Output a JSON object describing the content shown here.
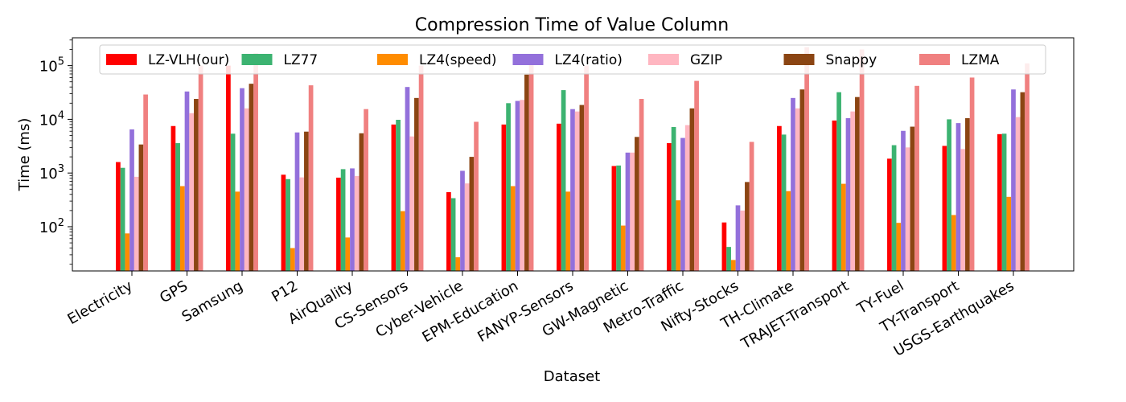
{
  "chart_data": {
    "type": "bar",
    "title": "Compression Time of Value Column",
    "xlabel": "Dataset",
    "ylabel": "Time (ms)",
    "yscale": "log",
    "ylim": [
      15,
      330000
    ],
    "yticks": [
      {
        "value": 100,
        "base": "10",
        "exp": "2"
      },
      {
        "value": 1000,
        "base": "10",
        "exp": "3"
      },
      {
        "value": 10000,
        "base": "10",
        "exp": "4"
      },
      {
        "value": 100000,
        "base": "10",
        "exp": "5"
      }
    ],
    "grid": false,
    "legend_position": "top",
    "categories": [
      "Electricity",
      "GPS",
      "Samsung",
      "P12",
      "AirQuality",
      "CS-Sensors",
      "Cyber-Vehicle",
      "EPM-Education",
      "FANYP-Sensors",
      "GW-Magnetic",
      "Metro-Traffic",
      "Nifty-Stocks",
      "TH-Climate",
      "TRAJET-Transport",
      "TY-Fuel",
      "TY-Transport",
      "USGS-Earthquakes"
    ],
    "series": [
      {
        "name": "LZ-VLH(our)",
        "color": "#ff0000",
        "values": [
          1600,
          7500,
          100000,
          930,
          820,
          8000,
          440,
          8000,
          8300,
          1350,
          3600,
          120,
          7500,
          9500,
          1850,
          3200,
          5300
        ]
      },
      {
        "name": "LZ77",
        "color": "#3cb371",
        "values": [
          1250,
          3600,
          5400,
          770,
          1180,
          9800,
          340,
          20000,
          35000,
          1380,
          7200,
          42,
          5200,
          32000,
          3300,
          10000,
          5400
        ]
      },
      {
        "name": "LZ4(speed)",
        "color": "#ff8c00",
        "values": [
          75,
          570,
          450,
          40,
          63,
          195,
          27,
          570,
          450,
          105,
          310,
          24,
          460,
          630,
          118,
          165,
          360
        ]
      },
      {
        "name": "LZ4(ratio)",
        "color": "#9370db",
        "values": [
          6500,
          33000,
          38000,
          5700,
          1220,
          40000,
          1100,
          22000,
          15500,
          2400,
          4500,
          250,
          25000,
          10500,
          6100,
          8500,
          36000
        ]
      },
      {
        "name": "GZIP",
        "color": "#ffb6c1",
        "values": [
          850,
          13000,
          16000,
          830,
          880,
          4800,
          640,
          23000,
          14000,
          2400,
          7800,
          200,
          16000,
          14000,
          3000,
          2800,
          11000
        ]
      },
      {
        "name": "Snappy",
        "color": "#8b4513",
        "values": [
          3400,
          24000,
          46000,
          5900,
          5500,
          25000,
          2000,
          68000,
          18500,
          4700,
          16000,
          680,
          36000,
          26000,
          7300,
          10500,
          32000
        ]
      },
      {
        "name": "LZMA",
        "color": "#f08080",
        "values": [
          29000,
          100000,
          170000,
          43000,
          15500,
          100000,
          9000,
          150000,
          100000,
          24000,
          52000,
          3800,
          220000,
          200000,
          42000,
          60000,
          110000
        ]
      }
    ]
  }
}
